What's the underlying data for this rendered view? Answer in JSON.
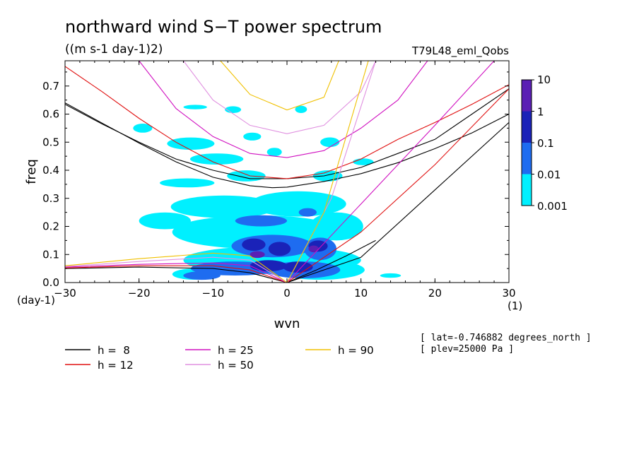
{
  "chart_data": {
    "type": "heatmap",
    "title": "northward wind S−T power spectrum",
    "subtitle": "((m s-1 day-1)2)",
    "run_label": "T79L48_eml_Qobs",
    "xlabel": "wvn",
    "ylabel": "freq",
    "x_unit": "(1)",
    "y_unit": "(day-1)",
    "xlim": [
      -30,
      30
    ],
    "ylim": [
      0,
      0.79
    ],
    "x_ticks": [
      -30,
      -20,
      -10,
      0,
      10,
      20,
      30
    ],
    "x_tick_labels": [
      "−30",
      "−20",
      "−10",
      "0",
      "10",
      "20",
      "30"
    ],
    "y_ticks": [
      0,
      0.1,
      0.2,
      0.3,
      0.4,
      0.5,
      0.6,
      0.7
    ],
    "y_tick_labels": [
      "0.0",
      "0.1",
      "0.2",
      "0.3",
      "0.4",
      "0.5",
      "0.6",
      "0.7"
    ],
    "colorbar": {
      "levels": [
        "10",
        "1",
        "0.1",
        "0.01",
        "0.001"
      ],
      "colors": [
        "#5a1fb4",
        "#1a22b8",
        "#1e6cf0",
        "#00f0ff"
      ]
    },
    "legend": [
      {
        "label": "h =  8",
        "color": "#000000"
      },
      {
        "label": "h = 12",
        "color": "#e01010"
      },
      {
        "label": "h = 25",
        "color": "#d010c0"
      },
      {
        "label": "h = 50",
        "color": "#e090e0"
      },
      {
        "label": "h = 90",
        "color": "#f0c000"
      }
    ],
    "notes": [
      "[ lat=-0.746882 degrees_north ]",
      "[ plev=25000 Pa ]"
    ],
    "dispersion_curves": [
      {
        "h": 8,
        "color": "#000000",
        "rossby_gravity": [
          [
            -30,
            0.64
          ],
          [
            -25,
            0.568
          ],
          [
            -20,
            0.497
          ],
          [
            -15,
            0.43
          ],
          [
            -10,
            0.375
          ],
          [
            -5,
            0.345
          ],
          [
            -2,
            0.338
          ],
          [
            0,
            0.34
          ],
          [
            5,
            0.36
          ],
          [
            10,
            0.388
          ],
          [
            15,
            0.427
          ],
          [
            20,
            0.477
          ],
          [
            25,
            0.533
          ],
          [
            30,
            0.6
          ]
        ],
        "inertia_gravity": [
          [
            -30,
            0.635
          ],
          [
            -25,
            0.565
          ],
          [
            -20,
            0.5
          ],
          [
            -15,
            0.44
          ],
          [
            -10,
            0.4
          ],
          [
            -5,
            0.37
          ],
          [
            0,
            0.37
          ],
          [
            5,
            0.38
          ],
          [
            10,
            0.41
          ],
          [
            15,
            0.46
          ],
          [
            20,
            0.51
          ],
          [
            25,
            0.6
          ],
          [
            30,
            0.69
          ]
        ],
        "kelvin": [
          [
            0,
            0
          ],
          [
            10,
            0.09
          ],
          [
            20,
            0.33
          ],
          [
            30,
            0.57
          ]
        ],
        "westward_low": [
          [
            -30,
            0.05
          ],
          [
            -20,
            0.055
          ],
          [
            -10,
            0.05
          ],
          [
            -5,
            0.035
          ],
          [
            0,
            0
          ]
        ],
        "eastward_low": [
          [
            0,
            0
          ],
          [
            4,
            0.045
          ],
          [
            8,
            0.095
          ],
          [
            12,
            0.15
          ]
        ]
      },
      {
        "h": 12,
        "color": "#e01010",
        "inertia_gravity": [
          [
            -30,
            0.77
          ],
          [
            -25,
            0.68
          ],
          [
            -20,
            0.585
          ],
          [
            -15,
            0.5
          ],
          [
            -10,
            0.43
          ],
          [
            -5,
            0.38
          ],
          [
            0,
            0.37
          ],
          [
            5,
            0.39
          ],
          [
            10,
            0.44
          ],
          [
            15,
            0.51
          ],
          [
            20,
            0.57
          ],
          [
            25,
            0.635
          ],
          [
            30,
            0.705
          ]
        ],
        "kelvin": [
          [
            0,
            0
          ],
          [
            10,
            0.18
          ],
          [
            20,
            0.42
          ],
          [
            30,
            0.69
          ]
        ],
        "westward_low": [
          [
            -30,
            0.052
          ],
          [
            -20,
            0.06
          ],
          [
            -10,
            0.06
          ],
          [
            -5,
            0.045
          ],
          [
            0,
            0
          ]
        ]
      },
      {
        "h": 25,
        "color": "#d010c0",
        "inertia_gravity": [
          [
            -20,
            0.79
          ],
          [
            -15,
            0.62
          ],
          [
            -10,
            0.52
          ],
          [
            -5,
            0.46
          ],
          [
            0,
            0.445
          ],
          [
            5,
            0.47
          ],
          [
            10,
            0.55
          ],
          [
            15,
            0.65
          ],
          [
            19,
            0.79
          ]
        ],
        "kelvin": [
          [
            0,
            0
          ],
          [
            10,
            0.28
          ],
          [
            20,
            0.56
          ],
          [
            28,
            0.79
          ]
        ],
        "westward_low": [
          [
            -30,
            0.055
          ],
          [
            -20,
            0.065
          ],
          [
            -10,
            0.07
          ],
          [
            -5,
            0.06
          ],
          [
            0,
            0
          ]
        ]
      },
      {
        "h": 50,
        "color": "#e090e0",
        "inertia_gravity": [
          [
            -14,
            0.79
          ],
          [
            -10,
            0.65
          ],
          [
            -5,
            0.56
          ],
          [
            0,
            0.53
          ],
          [
            5,
            0.56
          ],
          [
            10,
            0.68
          ],
          [
            12,
            0.79
          ]
        ],
        "kelvin": [
          [
            0,
            0
          ],
          [
            6,
            0.3
          ],
          [
            12,
            0.79
          ]
        ],
        "westward_low": [
          [
            -30,
            0.057
          ],
          [
            -20,
            0.075
          ],
          [
            -10,
            0.09
          ],
          [
            -5,
            0.08
          ],
          [
            0,
            0
          ]
        ]
      },
      {
        "h": 90,
        "color": "#f0c000",
        "inertia_gravity": [
          [
            -9,
            0.79
          ],
          [
            -5,
            0.67
          ],
          [
            0,
            0.615
          ],
          [
            5,
            0.66
          ],
          [
            7,
            0.79
          ]
        ],
        "kelvin": [
          [
            0,
            0
          ],
          [
            5,
            0.25
          ],
          [
            11,
            0.79
          ]
        ],
        "westward_low": [
          [
            -30,
            0.06
          ],
          [
            -20,
            0.085
          ],
          [
            -10,
            0.105
          ],
          [
            -5,
            0.095
          ],
          [
            0,
            0
          ]
        ]
      }
    ],
    "spectrum_patches": [
      {
        "level": "0.001",
        "x": -12.4,
        "y": 0.625,
        "rx": 1.6,
        "ry": 0.008
      },
      {
        "level": "0.001",
        "x": -7.3,
        "y": 0.616,
        "rx": 1.1,
        "ry": 0.012
      },
      {
        "level": "0.001",
        "x": 1.9,
        "y": 0.617,
        "rx": 0.8,
        "ry": 0.013
      },
      {
        "level": "0.001",
        "x": -19.5,
        "y": 0.55,
        "rx": 1.3,
        "ry": 0.016
      },
      {
        "level": "0.001",
        "x": -13.0,
        "y": 0.495,
        "rx": 3.2,
        "ry": 0.022
      },
      {
        "level": "0.001",
        "x": -4.7,
        "y": 0.52,
        "rx": 1.2,
        "ry": 0.014
      },
      {
        "level": "0.001",
        "x": 5.8,
        "y": 0.5,
        "rx": 1.3,
        "ry": 0.017
      },
      {
        "level": "0.001",
        "x": -9.5,
        "y": 0.44,
        "rx": 3.6,
        "ry": 0.02
      },
      {
        "level": "0.001",
        "x": -1.7,
        "y": 0.465,
        "rx": 1.0,
        "ry": 0.015
      },
      {
        "level": "0.001",
        "x": 10.3,
        "y": 0.43,
        "rx": 1.4,
        "ry": 0.012
      },
      {
        "level": "0.001",
        "x": -13.5,
        "y": 0.355,
        "rx": 3.7,
        "ry": 0.016
      },
      {
        "level": "0.001",
        "x": -5.5,
        "y": 0.38,
        "rx": 2.6,
        "ry": 0.02
      },
      {
        "level": "0.001",
        "x": 5.5,
        "y": 0.38,
        "rx": 2.0,
        "ry": 0.02
      },
      {
        "level": "0.001",
        "x": -8.5,
        "y": 0.27,
        "rx": 7.2,
        "ry": 0.04
      },
      {
        "level": "0.001",
        "x": 1.5,
        "y": 0.28,
        "rx": 6.5,
        "ry": 0.045
      },
      {
        "level": "0.001",
        "x": -16.5,
        "y": 0.22,
        "rx": 3.5,
        "ry": 0.03
      },
      {
        "level": "0.001",
        "x": -4.0,
        "y": 0.18,
        "rx": 11.5,
        "ry": 0.06
      },
      {
        "level": "0.001",
        "x": 6.7,
        "y": 0.2,
        "rx": 3.6,
        "ry": 0.05
      },
      {
        "level": "0.001",
        "x": -2.0,
        "y": 0.08,
        "rx": 12.0,
        "ry": 0.05
      },
      {
        "level": "0.001",
        "x": 4.5,
        "y": 0.045,
        "rx": 6.0,
        "ry": 0.035
      },
      {
        "level": "0.001",
        "x": -12.5,
        "y": 0.03,
        "rx": 3.0,
        "ry": 0.02
      },
      {
        "level": "0.001",
        "x": 14.0,
        "y": 0.025,
        "rx": 1.4,
        "ry": 0.008
      },
      {
        "level": "0.01",
        "x": -3.5,
        "y": 0.22,
        "rx": 3.5,
        "ry": 0.02
      },
      {
        "level": "0.01",
        "x": 2.8,
        "y": 0.25,
        "rx": 1.2,
        "ry": 0.015
      },
      {
        "level": "0.01",
        "x": -2.0,
        "y": 0.13,
        "rx": 5.5,
        "ry": 0.04
      },
      {
        "level": "0.01",
        "x": 4.5,
        "y": 0.12,
        "rx": 2.2,
        "ry": 0.04
      },
      {
        "level": "0.01",
        "x": -7.0,
        "y": 0.05,
        "rx": 6.0,
        "ry": 0.025
      },
      {
        "level": "0.01",
        "x": 2.2,
        "y": 0.045,
        "rx": 5.0,
        "ry": 0.03
      },
      {
        "level": "0.01",
        "x": -11.5,
        "y": 0.025,
        "rx": 2.5,
        "ry": 0.015
      },
      {
        "level": "0.1",
        "x": -4.5,
        "y": 0.135,
        "rx": 1.6,
        "ry": 0.022
      },
      {
        "level": "0.1",
        "x": -1.0,
        "y": 0.12,
        "rx": 1.5,
        "ry": 0.025
      },
      {
        "level": "0.1",
        "x": 4.2,
        "y": 0.13,
        "rx": 1.3,
        "ry": 0.02
      },
      {
        "level": "0.1",
        "x": -2.5,
        "y": 0.06,
        "rx": 2.5,
        "ry": 0.02
      },
      {
        "level": "0.1",
        "x": 1.5,
        "y": 0.055,
        "rx": 2.0,
        "ry": 0.02
      },
      {
        "level": "1",
        "x": -4.0,
        "y": 0.1,
        "rx": 1.0,
        "ry": 0.012
      },
      {
        "level": "1",
        "x": 3.6,
        "y": 0.12,
        "rx": 0.7,
        "ry": 0.012
      }
    ]
  }
}
